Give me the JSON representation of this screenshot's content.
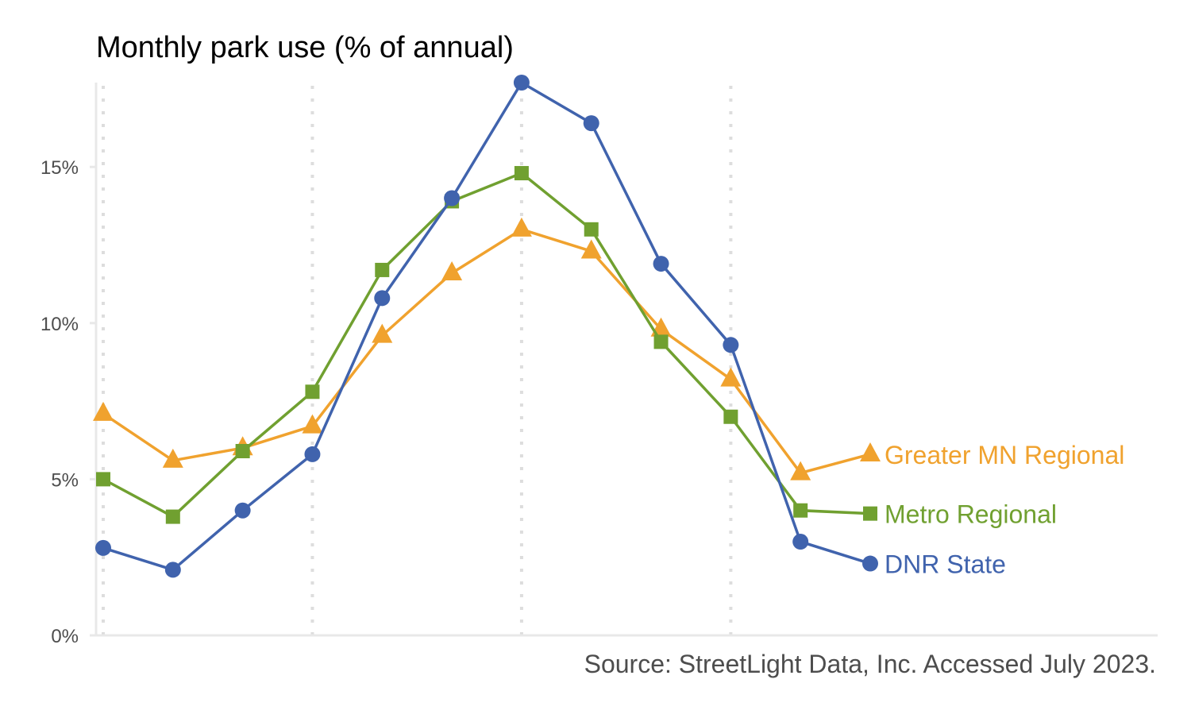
{
  "chart_data": {
    "type": "line",
    "title": "Monthly park use (% of annual)",
    "caption": "Source: StreetLight Data, Inc. Accessed July 2023.",
    "xlabel": "",
    "ylabel": "",
    "x": [
      1,
      2,
      3,
      4,
      5,
      6,
      7,
      8,
      9,
      10,
      11,
      12
    ],
    "xlim": [
      1,
      12
    ],
    "x_gridlines": [
      1,
      4,
      7,
      10
    ],
    "ylim": [
      0,
      17.7
    ],
    "y_ticks": [
      0,
      5,
      10,
      15
    ],
    "y_tick_labels": [
      "0%",
      "5%",
      "10%",
      "15%"
    ],
    "grid": "dotted vertical",
    "legend": "direct labels at right end of lines",
    "series": [
      {
        "name": "Greater MN Regional",
        "color": "#f0a22e",
        "marker": "triangle",
        "values": [
          7.1,
          5.6,
          6.0,
          6.7,
          9.6,
          11.6,
          13.0,
          12.3,
          9.8,
          8.2,
          5.2,
          5.8
        ]
      },
      {
        "name": "Metro Regional",
        "color": "#70a030",
        "marker": "square",
        "values": [
          5.0,
          3.8,
          5.9,
          7.8,
          11.7,
          13.9,
          14.8,
          13.0,
          9.4,
          7.0,
          4.0,
          3.9
        ]
      },
      {
        "name": "DNR State",
        "color": "#4063ad",
        "marker": "circle",
        "values": [
          2.8,
          2.1,
          4.0,
          5.8,
          10.8,
          14.0,
          17.7,
          16.4,
          11.9,
          9.3,
          3.0,
          2.3
        ]
      }
    ]
  }
}
